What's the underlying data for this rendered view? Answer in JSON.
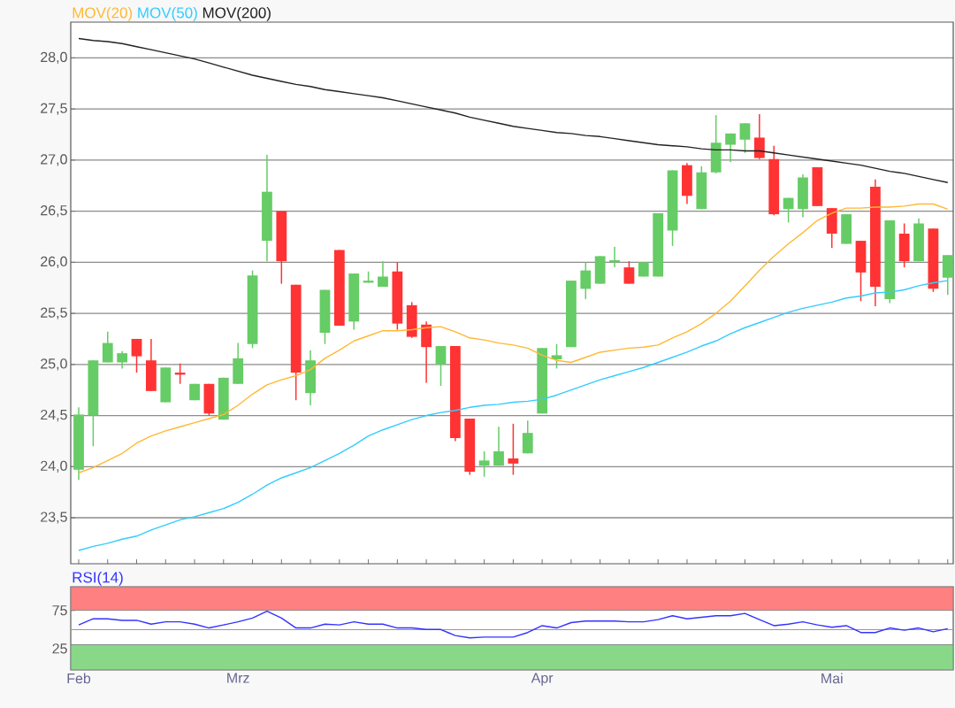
{
  "chart_data": [
    {
      "type": "candlestick",
      "categories": [
        null,
        null,
        null,
        null,
        null,
        null,
        null,
        null,
        null,
        null,
        null,
        null,
        null,
        null,
        null,
        null,
        null,
        null,
        null,
        null,
        null,
        null,
        null,
        null,
        null,
        null,
        null,
        null,
        null,
        null,
        null,
        null,
        null,
        null,
        null,
        null,
        null,
        null,
        null,
        null,
        null,
        null,
        null,
        null,
        null,
        null,
        null,
        null,
        null,
        null,
        null,
        null,
        null,
        null,
        null,
        null,
        null,
        null,
        null,
        null,
        null
      ],
      "ohlc": [
        [
          23.97,
          24.58,
          23.87,
          24.51
        ],
        [
          24.5,
          25.04,
          24.2,
          25.04
        ],
        [
          25.02,
          25.32,
          25.02,
          25.21
        ],
        [
          25.02,
          25.13,
          24.96,
          25.11
        ],
        [
          25.25,
          25.25,
          24.92,
          25.08
        ],
        [
          25.04,
          25.25,
          24.74,
          24.74
        ],
        [
          24.63,
          24.97,
          24.63,
          24.97
        ],
        [
          24.92,
          25.01,
          24.81,
          24.9
        ],
        [
          24.65,
          24.81,
          24.65,
          24.81
        ],
        [
          24.81,
          24.81,
          24.5,
          24.52
        ],
        [
          24.46,
          24.87,
          24.46,
          24.87
        ],
        [
          24.81,
          25.21,
          24.81,
          25.06
        ],
        [
          25.2,
          25.92,
          25.16,
          25.87
        ],
        [
          26.21,
          27.05,
          26.01,
          26.69
        ],
        [
          26.5,
          26.5,
          25.79,
          26.01
        ],
        [
          25.78,
          25.78,
          24.65,
          24.92
        ],
        [
          24.72,
          25.14,
          24.6,
          25.04
        ],
        [
          25.31,
          25.73,
          25.2,
          25.73
        ],
        [
          26.12,
          26.12,
          25.38,
          25.38
        ],
        [
          25.42,
          25.89,
          25.34,
          25.89
        ],
        [
          25.8,
          25.91,
          25.8,
          25.82
        ],
        [
          25.76,
          26.01,
          25.76,
          25.86
        ],
        [
          25.91,
          26.0,
          25.34,
          25.4
        ],
        [
          25.58,
          25.61,
          25.26,
          25.27
        ],
        [
          25.39,
          25.42,
          24.82,
          25.17
        ],
        [
          25.0,
          25.18,
          24.79,
          25.18
        ],
        [
          25.18,
          25.18,
          24.25,
          24.28
        ],
        [
          24.47,
          24.47,
          23.92,
          23.95
        ],
        [
          24.01,
          24.15,
          23.9,
          24.06
        ],
        [
          24.01,
          24.39,
          24.01,
          24.15
        ],
        [
          24.08,
          24.42,
          23.92,
          24.03
        ],
        [
          24.13,
          24.45,
          24.13,
          24.33
        ],
        [
          24.52,
          25.16,
          24.52,
          25.16
        ],
        [
          25.05,
          25.2,
          24.96,
          25.09
        ],
        [
          25.17,
          25.82,
          25.17,
          25.82
        ],
        [
          25.74,
          26.0,
          25.64,
          25.92
        ],
        [
          25.79,
          26.06,
          25.79,
          26.06
        ],
        [
          26.0,
          26.15,
          25.95,
          26.02
        ],
        [
          25.95,
          26.01,
          25.79,
          25.79
        ],
        [
          25.86,
          26.0,
          25.86,
          26.0
        ],
        [
          25.86,
          26.48,
          25.86,
          26.48
        ],
        [
          26.31,
          26.9,
          26.16,
          26.9
        ],
        [
          26.95,
          26.97,
          26.57,
          26.65
        ],
        [
          26.52,
          26.94,
          26.52,
          26.88
        ],
        [
          26.88,
          27.44,
          26.87,
          27.17
        ],
        [
          27.15,
          27.26,
          26.98,
          27.26
        ],
        [
          27.2,
          27.36,
          27.07,
          27.36
        ],
        [
          27.22,
          27.45,
          27.01,
          27.02
        ],
        [
          27.01,
          27.14,
          26.46,
          26.47
        ],
        [
          26.52,
          26.63,
          26.39,
          26.63
        ],
        [
          26.52,
          26.86,
          26.44,
          26.83
        ],
        [
          26.93,
          26.93,
          26.55,
          26.55
        ],
        [
          26.53,
          26.53,
          26.14,
          26.28
        ],
        [
          26.18,
          26.47,
          26.18,
          26.47
        ],
        [
          26.21,
          26.21,
          25.62,
          25.9
        ],
        [
          26.74,
          26.81,
          25.57,
          25.76
        ],
        [
          25.64,
          26.41,
          25.6,
          26.41
        ],
        [
          26.28,
          26.38,
          25.95,
          26.01
        ],
        [
          26.01,
          26.43,
          26.01,
          26.38
        ],
        [
          26.33,
          26.33,
          25.71,
          25.74
        ],
        [
          25.85,
          26.07,
          25.68,
          26.07
        ]
      ],
      "colors": [
        "#66cc66",
        "#66cc66",
        "#66cc66",
        "#66cc66",
        "#ff3333",
        "#ff3333",
        "#66cc66",
        "#ff3333",
        "#66cc66",
        "#ff3333",
        "#66cc66",
        "#66cc66",
        "#66cc66",
        "#66cc66",
        "#ff3333",
        "#ff3333",
        "#66cc66",
        "#66cc66",
        "#ff3333",
        "#66cc66",
        "#66cc66",
        "#66cc66",
        "#ff3333",
        "#ff3333",
        "#ff3333",
        "#66cc66",
        "#ff3333",
        "#ff3333",
        "#66cc66",
        "#66cc66",
        "#ff3333",
        "#66cc66",
        "#66cc66",
        "#66cc66",
        "#66cc66",
        "#66cc66",
        "#66cc66",
        "#66cc66",
        "#ff3333",
        "#66cc66",
        "#66cc66",
        "#66cc66",
        "#ff3333",
        "#66cc66",
        "#66cc66",
        "#66cc66",
        "#66cc66",
        "#ff3333",
        "#ff3333",
        "#66cc66",
        "#66cc66",
        "#ff3333",
        "#ff3333",
        "#66cc66",
        "#ff3333",
        "#ff3333",
        "#66cc66",
        "#ff3333",
        "#66cc66",
        "#ff3333",
        "#66cc66"
      ],
      "series": [
        {
          "type": "line",
          "name": "MOV(20)",
          "color": "#ffb833",
          "values": [
            23.94,
            23.99,
            24.06,
            24.13,
            24.23,
            24.3,
            24.35,
            24.39,
            24.43,
            24.47,
            24.51,
            24.6,
            24.71,
            24.8,
            24.85,
            24.89,
            24.95,
            25.06,
            25.14,
            25.23,
            25.28,
            25.33,
            25.33,
            25.34,
            25.36,
            25.37,
            25.32,
            25.26,
            25.24,
            25.21,
            25.19,
            25.16,
            25.09,
            25.04,
            25.02,
            25.07,
            25.12,
            25.14,
            25.16,
            25.17,
            25.19,
            25.26,
            25.32,
            25.4,
            25.5,
            25.62,
            25.77,
            25.92,
            26.06,
            26.18,
            26.29,
            26.41,
            26.48,
            26.53,
            26.53,
            26.54,
            26.54,
            26.55,
            26.57,
            26.57,
            26.52
          ]
        },
        {
          "type": "line",
          "name": "MOV(50)",
          "color": "#33ccff",
          "values": [
            23.18,
            23.22,
            23.25,
            23.29,
            23.32,
            23.38,
            23.43,
            23.48,
            23.51,
            23.55,
            23.59,
            23.65,
            23.73,
            23.82,
            23.89,
            23.94,
            23.99,
            24.06,
            24.13,
            24.21,
            24.3,
            24.36,
            24.41,
            24.46,
            24.5,
            24.53,
            24.55,
            24.58,
            24.6,
            24.61,
            24.63,
            24.64,
            24.66,
            24.7,
            24.75,
            24.8,
            24.85,
            24.89,
            24.93,
            24.97,
            25.02,
            25.07,
            25.12,
            25.18,
            25.23,
            25.3,
            25.36,
            25.41,
            25.46,
            25.51,
            25.55,
            25.58,
            25.61,
            25.65,
            25.67,
            25.7,
            25.71,
            25.73,
            25.77,
            25.8,
            25.82
          ]
        },
        {
          "type": "line",
          "name": "MOV(200)",
          "color": "#222222",
          "values": [
            28.19,
            28.17,
            28.16,
            28.14,
            28.11,
            28.08,
            28.05,
            28.02,
            27.99,
            27.95,
            27.91,
            27.87,
            27.83,
            27.8,
            27.77,
            27.74,
            27.72,
            27.69,
            27.67,
            27.65,
            27.63,
            27.61,
            27.58,
            27.55,
            27.52,
            27.49,
            27.46,
            27.42,
            27.39,
            27.36,
            27.33,
            27.31,
            27.29,
            27.27,
            27.26,
            27.24,
            27.23,
            27.21,
            27.19,
            27.17,
            27.15,
            27.14,
            27.13,
            27.11,
            27.1,
            27.1,
            27.09,
            27.09,
            27.07,
            27.05,
            27.03,
            27.01,
            26.99,
            26.97,
            26.95,
            26.92,
            26.89,
            26.87,
            26.84,
            26.81,
            26.78
          ]
        }
      ],
      "ylim": [
        23.05,
        28.35
      ],
      "yticks": [
        {
          "value": 23.5,
          "label": "23,5"
        },
        {
          "value": 24,
          "label": "24,0"
        },
        {
          "value": 24.5,
          "label": "24,5"
        },
        {
          "value": 25,
          "label": "25,0"
        },
        {
          "value": 25.5,
          "label": "25,5"
        },
        {
          "value": 26,
          "label": "26,0"
        },
        {
          "value": 26.5,
          "label": "26,5"
        },
        {
          "value": 27,
          "label": "27,0"
        },
        {
          "value": 27.5,
          "label": "27,5"
        },
        {
          "value": 28,
          "label": "28,0"
        }
      ],
      "grid": "y",
      "tick_labels": "y"
    },
    {
      "type": "line",
      "categories": [
        "Feb",
        null,
        null,
        null,
        null,
        null,
        null,
        null,
        null,
        null,
        null,
        "Mrz",
        null,
        null,
        null,
        null,
        null,
        null,
        null,
        null,
        null,
        null,
        null,
        null,
        null,
        null,
        null,
        null,
        null,
        null,
        null,
        null,
        "Apr",
        null,
        null,
        null,
        null,
        null,
        null,
        null,
        null,
        null,
        null,
        null,
        null,
        null,
        null,
        null,
        null,
        null,
        null,
        null,
        "Mai",
        null,
        null,
        null,
        null,
        null,
        null,
        null,
        null
      ],
      "series": [
        {
          "name": "RSI(14)",
          "color": "#3333ff",
          "values": [
            56,
            64,
            64,
            62,
            62,
            57,
            60,
            60,
            57,
            52,
            56,
            60,
            65,
            74,
            65,
            52,
            52,
            57,
            56,
            60,
            57,
            57,
            52,
            52,
            50,
            50,
            42,
            39,
            40,
            40,
            40,
            46,
            55,
            52,
            59,
            61,
            61,
            61,
            60,
            60,
            63,
            68,
            64,
            66,
            68,
            68,
            71,
            63,
            55,
            57,
            60,
            56,
            53,
            55,
            46,
            46,
            52,
            49,
            52,
            47,
            51
          ]
        }
      ],
      "ylim": [
        -3,
        106
      ],
      "yticks": [
        25,
        75
      ],
      "bands": [
        {
          "axis": "y",
          "from": 75,
          "to": 106,
          "color": "#ff8080"
        },
        {
          "axis": "y",
          "from": -3,
          "to": 30,
          "color": "#88d888"
        }
      ],
      "ref_lines": [
        {
          "axis": "y",
          "value": 50,
          "color": "#999999"
        }
      ]
    }
  ]
}
